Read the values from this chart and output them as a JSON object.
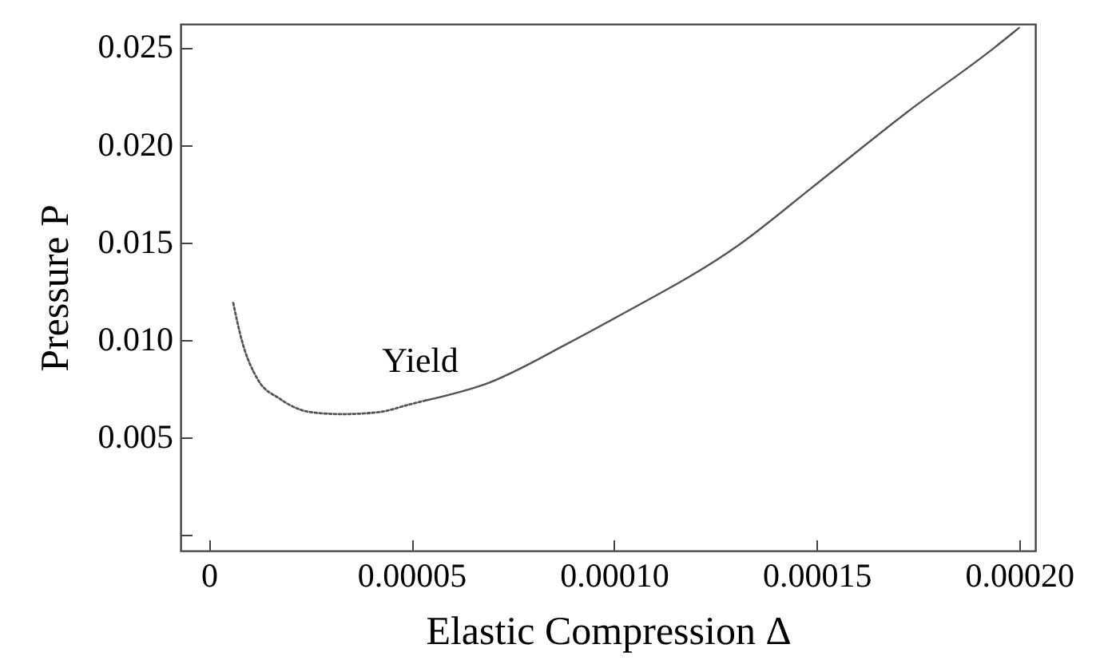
{
  "chart_data": {
    "type": "line",
    "xlabel": "Elastic Compression Δ",
    "ylabel": "Pressure P",
    "annotations": [
      "Yield"
    ],
    "xlim": [
      -7e-06,
      0.000204
    ],
    "ylim": [
      -0.0008,
      0.0262
    ],
    "xticks": [
      0,
      {
        "value": 5e-05,
        "label": "0.00005"
      },
      {
        "value": 0.0001,
        "label": "0.00010"
      },
      0.00015,
      {
        "value": 0.0002,
        "label": "0.00020"
      }
    ],
    "yticks": [
      {
        "value": 0,
        "label": null
      },
      0.005,
      {
        "value": 0.01,
        "label": "0.010"
      },
      0.015,
      {
        "value": 0.02,
        "label": "0.020"
      },
      0.025
    ],
    "grid": false,
    "series": [
      {
        "color": "#555555",
        "line_style": "dotted",
        "x": [
          6e-06,
          8.1e-06,
          1.2e-05,
          1.74e-05,
          2.52e-05,
          3.3e-05,
          4.19e-05,
          4.96e-05,
          5.35e-05
        ],
        "values": [
          0.0119,
          0.01,
          0.008,
          0.007,
          0.0063,
          0.0062,
          0.0063,
          0.0067,
          0.0069
        ]
      },
      {
        "color": "#555555",
        "line_style": "solid",
        "x": [
          5.35e-05,
          6.9e-05,
          8.84e-05,
          0.0001,
          0.000131,
          0.00015,
          0.0001725,
          0.000194,
          0.0002
        ],
        "values": [
          0.0069,
          0.0078,
          0.0098,
          0.0111,
          0.0149,
          0.018,
          0.0217,
          0.025,
          0.026
        ]
      }
    ]
  }
}
